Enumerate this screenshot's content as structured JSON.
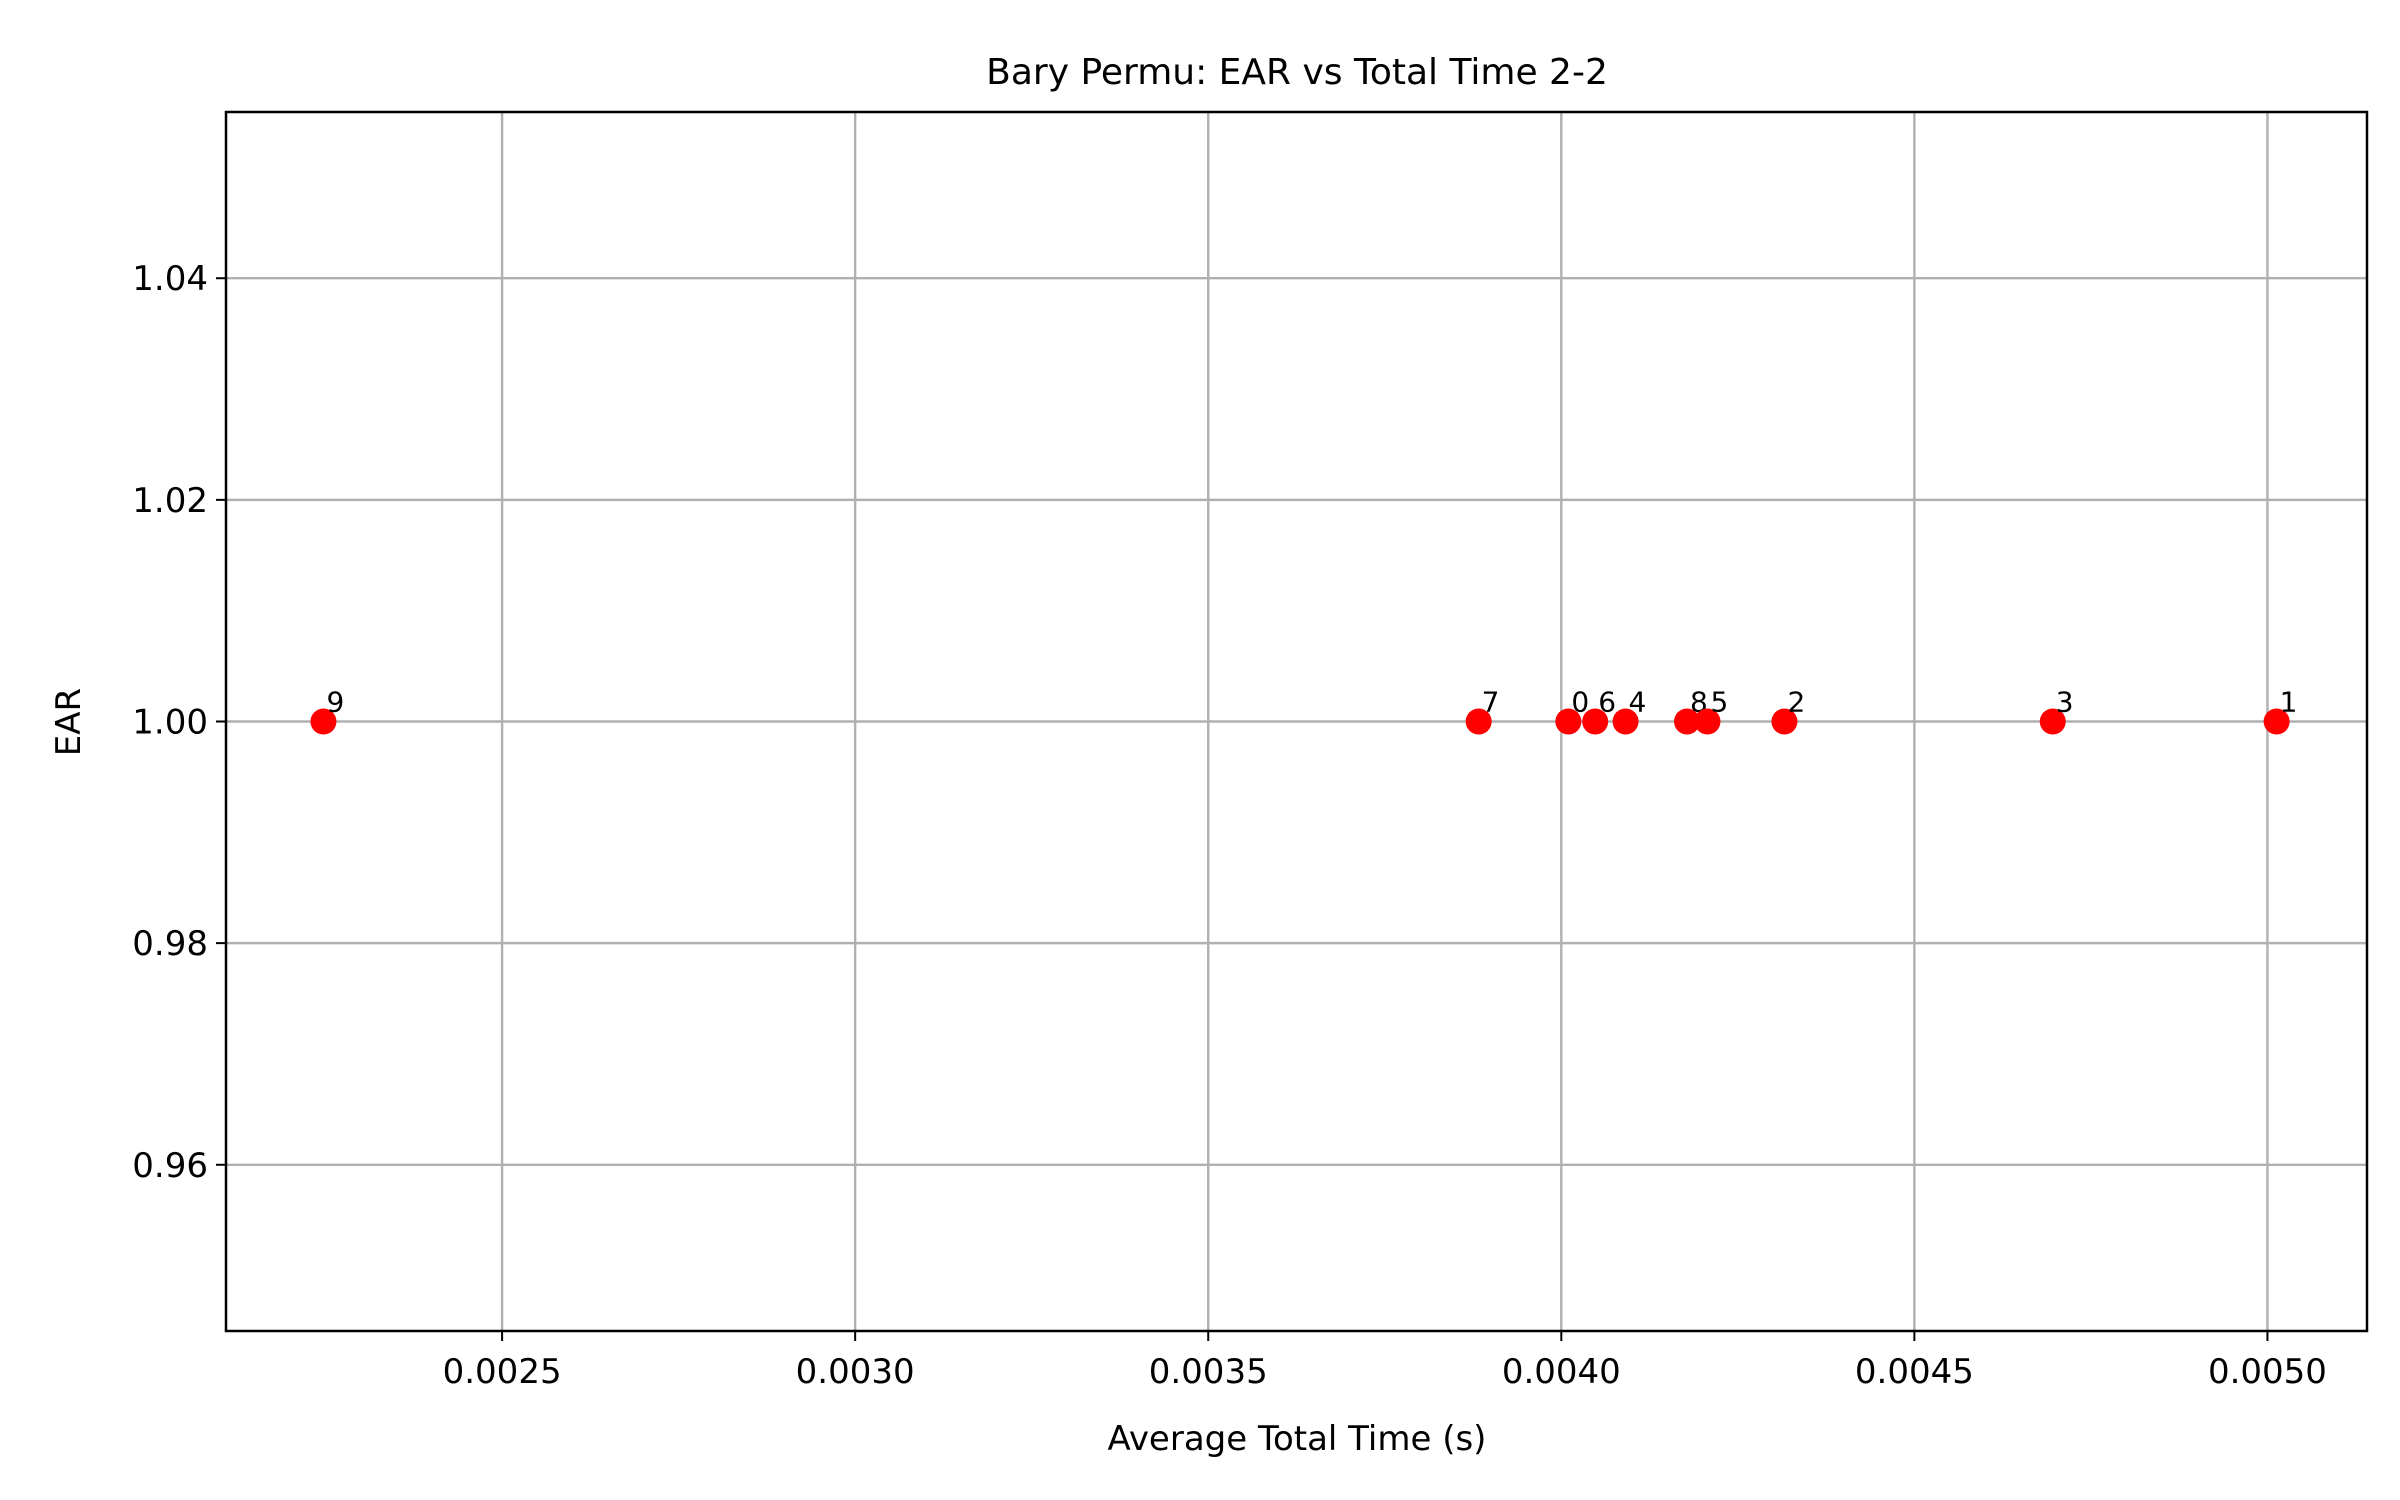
{
  "chart_data": {
    "type": "scatter",
    "title": "Bary Permu: EAR vs Total Time 2-2",
    "xlabel": "Average Total Time (s)",
    "ylabel": "EAR",
    "xlim": [
      0.002109,
      0.005141
    ],
    "ylim": [
      0.945,
      1.055
    ],
    "grid": true,
    "x_ticks": [
      "0.0025",
      "0.0030",
      "0.0035",
      "0.0040",
      "0.0045",
      "0.0050"
    ],
    "y_ticks": [
      "0.96",
      "0.98",
      "1.00",
      "1.02",
      "1.04"
    ],
    "point_color": "#ff0000",
    "points": [
      {
        "label": "9",
        "x": 0.002247,
        "y": 1.0
      },
      {
        "label": "7",
        "x": 0.003883,
        "y": 1.0
      },
      {
        "label": "0",
        "x": 0.00401,
        "y": 1.0
      },
      {
        "label": "6",
        "x": 0.004048,
        "y": 1.0
      },
      {
        "label": "4",
        "x": 0.004091,
        "y": 1.0
      },
      {
        "label": "8",
        "x": 0.004178,
        "y": 1.0
      },
      {
        "label": "5",
        "x": 0.004207,
        "y": 1.0
      },
      {
        "label": "2",
        "x": 0.004316,
        "y": 1.0
      },
      {
        "label": "3",
        "x": 0.004696,
        "y": 1.0
      },
      {
        "label": "1",
        "x": 0.005013,
        "y": 1.0
      }
    ]
  }
}
